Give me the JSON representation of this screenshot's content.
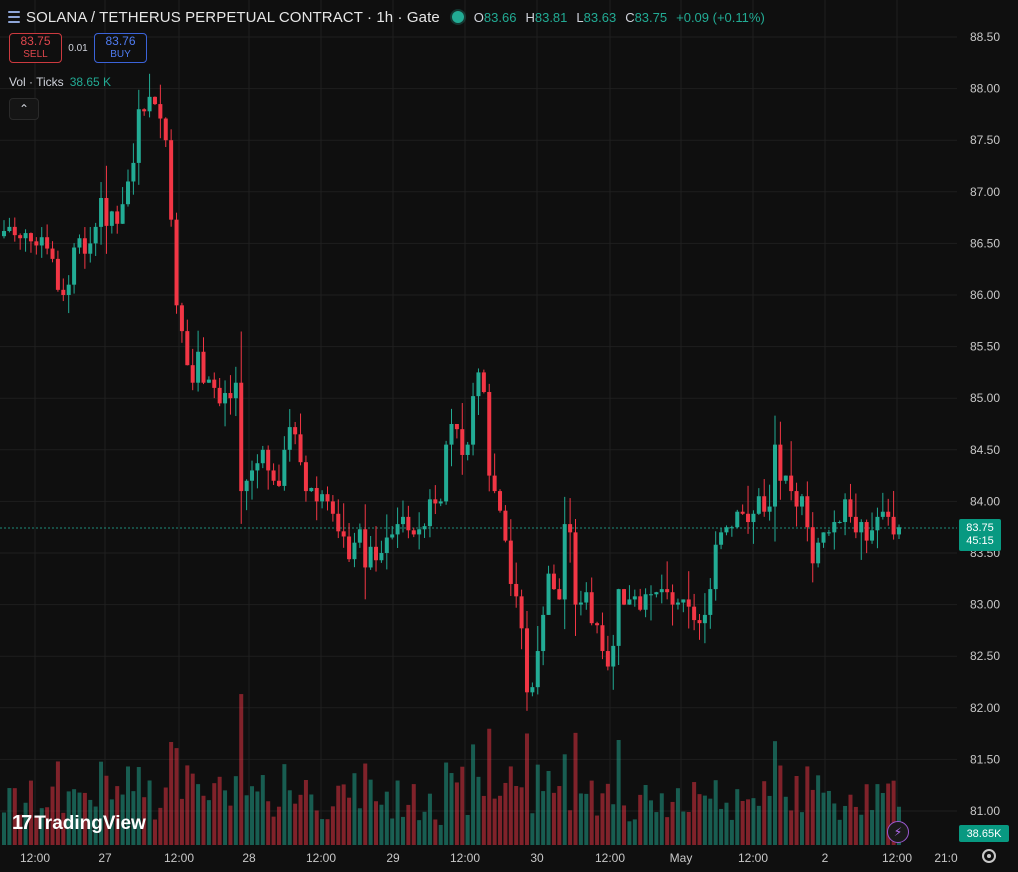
{
  "header": {
    "symbol_title": "SOLANA / TETHERUS PERPETUAL CONTRACT · 1h · Gate",
    "ohlc": [
      {
        "key": "O",
        "value": "83.66"
      },
      {
        "key": "H",
        "value": "83.81"
      },
      {
        "key": "L",
        "value": "83.63"
      },
      {
        "key": "C",
        "value": "83.75"
      }
    ],
    "change": "+0.09 (+0.11%)"
  },
  "trade": {
    "sell_price": "83.75",
    "sell_label": "SELL",
    "spread": "0.01",
    "buy_price": "83.76",
    "buy_label": "BUY"
  },
  "volume_legend": {
    "label": "Vol · Ticks",
    "value": "38.65 K"
  },
  "price_axis": {
    "ticks": [
      "88.50",
      "88.00",
      "87.50",
      "87.00",
      "86.50",
      "86.00",
      "85.50",
      "85.00",
      "84.50",
      "84.00",
      "83.50",
      "83.00",
      "82.50",
      "82.00",
      "81.50",
      "81.00"
    ],
    "last_price": "83.75",
    "countdown": "45:15",
    "volume_last": "38.65K"
  },
  "time_axis": {
    "ticks": [
      "12:00",
      "27",
      "12:00",
      "28",
      "12:00",
      "29",
      "12:00",
      "30",
      "12:00",
      "May",
      "12:00",
      "2",
      "12:00",
      "21:0"
    ]
  },
  "watermark": "TradingView",
  "colors": {
    "up": "#22ab94",
    "down": "#f23645",
    "background": "#0f0f0f"
  },
  "chart_data": {
    "type": "candlestick",
    "title": "SOLANA / TETHERUS PERPETUAL CONTRACT · 1h · Gate",
    "interval": "1h",
    "ylim": [
      80.75,
      88.75
    ],
    "x_labels": [
      "12:00",
      "27",
      "12:00",
      "28",
      "12:00",
      "29",
      "12:00",
      "30",
      "12:00",
      "May",
      "12:00",
      "2",
      "12:00"
    ],
    "grid": true,
    "close_series": [
      86.62,
      86.66,
      86.58,
      86.55,
      86.6,
      86.52,
      86.48,
      86.56,
      86.45,
      86.35,
      86.05,
      86.0,
      86.1,
      86.46,
      86.55,
      86.4,
      86.5,
      86.66,
      86.94,
      86.67,
      86.81,
      86.69,
      86.88,
      87.1,
      87.28,
      87.8,
      87.78,
      87.92,
      87.85,
      87.71,
      87.5,
      86.73,
      85.9,
      85.65,
      85.32,
      85.15,
      85.45,
      85.15,
      85.18,
      85.1,
      84.95,
      85.05,
      85.0,
      85.15,
      84.1,
      84.2,
      84.3,
      84.37,
      84.5,
      84.3,
      84.2,
      84.15,
      84.5,
      84.72,
      84.65,
      84.38,
      84.1,
      84.13,
      84.0,
      84.07,
      84.0,
      83.88,
      83.71,
      83.66,
      83.44,
      83.6,
      83.73,
      83.36,
      83.56,
      83.43,
      83.5,
      83.65,
      83.68,
      83.78,
      83.85,
      83.72,
      83.68,
      83.73,
      83.76,
      84.02,
      83.98,
      84.0,
      84.55,
      84.75,
      84.7,
      84.45,
      84.55,
      85.02,
      85.25,
      85.06,
      84.25,
      84.1,
      83.91,
      83.62,
      83.2,
      83.08,
      82.77,
      82.15,
      82.2,
      82.55,
      82.9,
      83.3,
      83.15,
      83.05,
      83.78,
      83.7,
      83.0,
      83.02,
      83.12,
      82.82,
      82.8,
      82.55,
      82.4,
      82.6,
      83.15,
      83.0,
      83.05,
      83.08,
      82.95,
      83.1,
      83.1,
      83.12,
      83.15,
      83.12,
      83.0,
      83.02,
      83.05,
      82.98,
      82.85,
      82.82,
      82.9,
      83.15,
      83.58,
      83.7,
      83.75,
      83.75,
      83.9,
      83.88,
      83.8,
      83.88,
      84.05,
      83.9,
      83.95,
      84.55,
      84.2,
      84.25,
      84.1,
      83.95,
      84.05,
      83.75,
      83.4,
      83.6,
      83.7,
      83.7,
      83.8,
      83.8,
      84.02,
      83.85,
      83.7,
      83.8,
      83.62,
      83.72,
      83.85,
      83.9,
      83.85,
      83.68,
      83.75
    ],
    "volume_unit": "K",
    "last_volume": 38.65
  }
}
